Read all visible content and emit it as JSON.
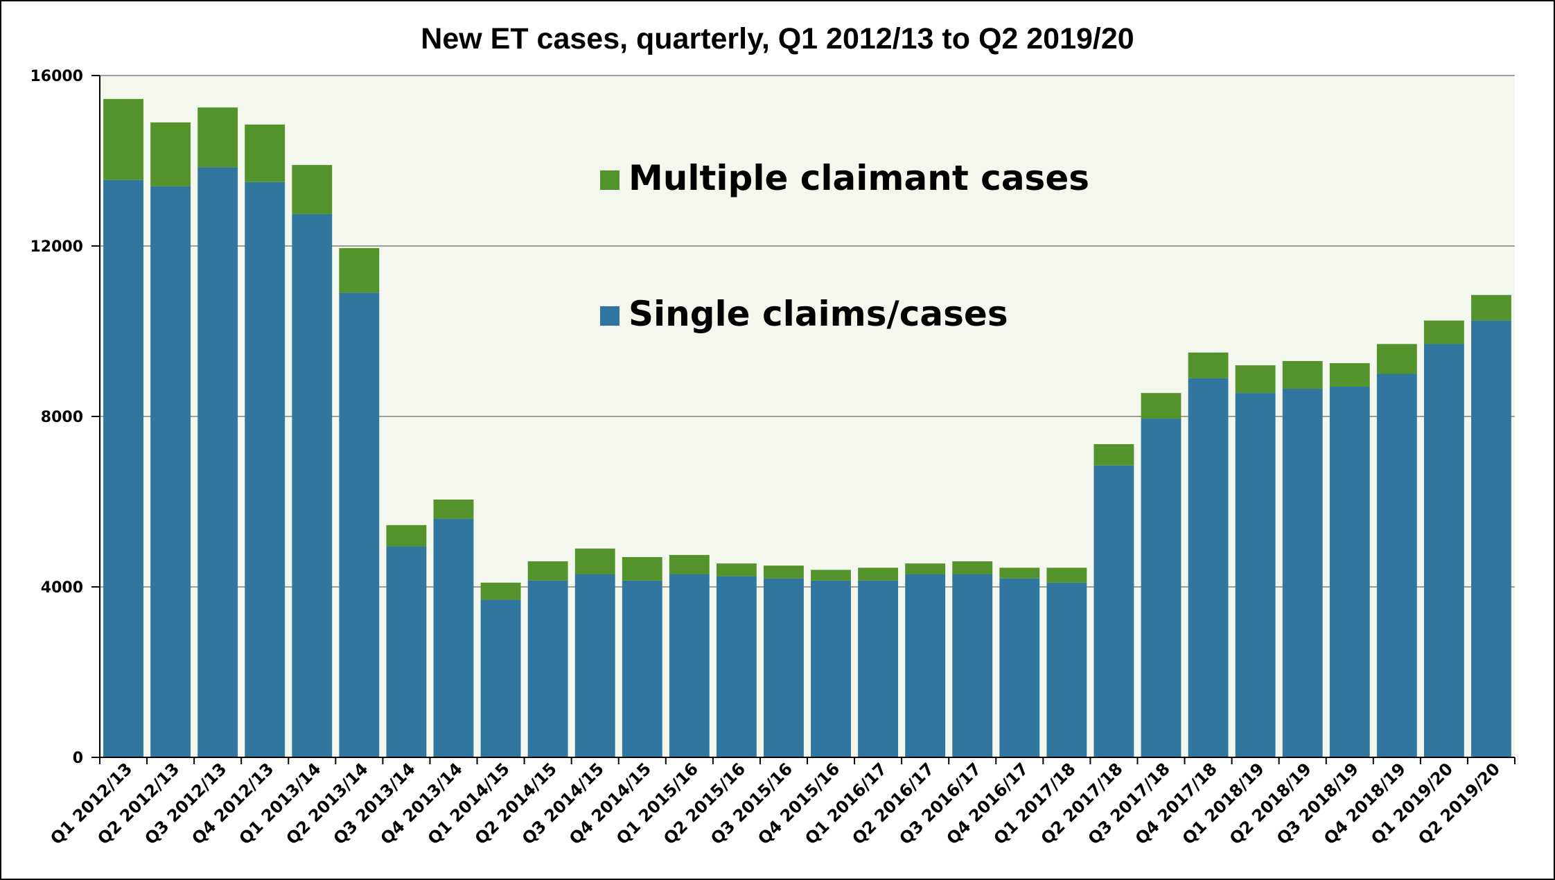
{
  "chart_data": {
    "type": "bar",
    "stacked": true,
    "title": "New ET cases, quarterly, Q1 2012/13 to Q2 2019/20",
    "xlabel": "",
    "ylabel": "",
    "ylim": [
      0,
      16000
    ],
    "yticks": [
      0,
      4000,
      8000,
      12000,
      16000
    ],
    "ytick_labels": [
      "0",
      "4000",
      "8000",
      "12000",
      "16000"
    ],
    "grid": true,
    "legend_placement": "upper-center",
    "colors": {
      "single": "#31769f",
      "multiple": "#54922b",
      "plot_background": "#f4f7ed",
      "gridline": "#808080"
    },
    "categories": [
      "Q1 2012/13",
      "Q2 2012/13",
      "Q3 2012/13",
      "Q4 2012/13",
      "Q1 2013/14",
      "Q2 2013/14",
      "Q3 2013/14",
      "Q4 2013/14",
      "Q1 2014/15",
      "Q2 2014/15",
      "Q3 2014/15",
      "Q4 2014/15",
      "Q1 2015/16",
      "Q2 2015/16",
      "Q3 2015/16",
      "Q4 2015/16",
      "Q1 2016/17",
      "Q2 2016/17",
      "Q3 2016/17",
      "Q4 2016/17",
      "Q1 2017/18",
      "Q2 2017/18",
      "Q3 2017/18",
      "Q4 2017/18",
      "Q1 2018/19",
      "Q2 2018/19",
      "Q3 2018/19",
      "Q4 2018/19",
      "Q1 2019/20",
      "Q2 2019/20"
    ],
    "series": [
      {
        "name": "Single claims/cases",
        "color": "#31769f",
        "values": [
          13550,
          13400,
          13850,
          13500,
          12750,
          10900,
          4950,
          5600,
          3700,
          4150,
          4300,
          4150,
          4300,
          4250,
          4200,
          4150,
          4150,
          4300,
          4300,
          4200,
          4100,
          6850,
          7950,
          8900,
          8550,
          8650,
          8700,
          9000,
          9700,
          10250
        ]
      },
      {
        "name": "Multiple claimant cases",
        "color": "#54922b",
        "values": [
          1900,
          1500,
          1400,
          1350,
          1150,
          1050,
          500,
          450,
          400,
          450,
          600,
          550,
          450,
          300,
          300,
          250,
          300,
          250,
          300,
          250,
          350,
          500,
          600,
          600,
          650,
          650,
          550,
          700,
          550,
          600
        ]
      }
    ]
  }
}
